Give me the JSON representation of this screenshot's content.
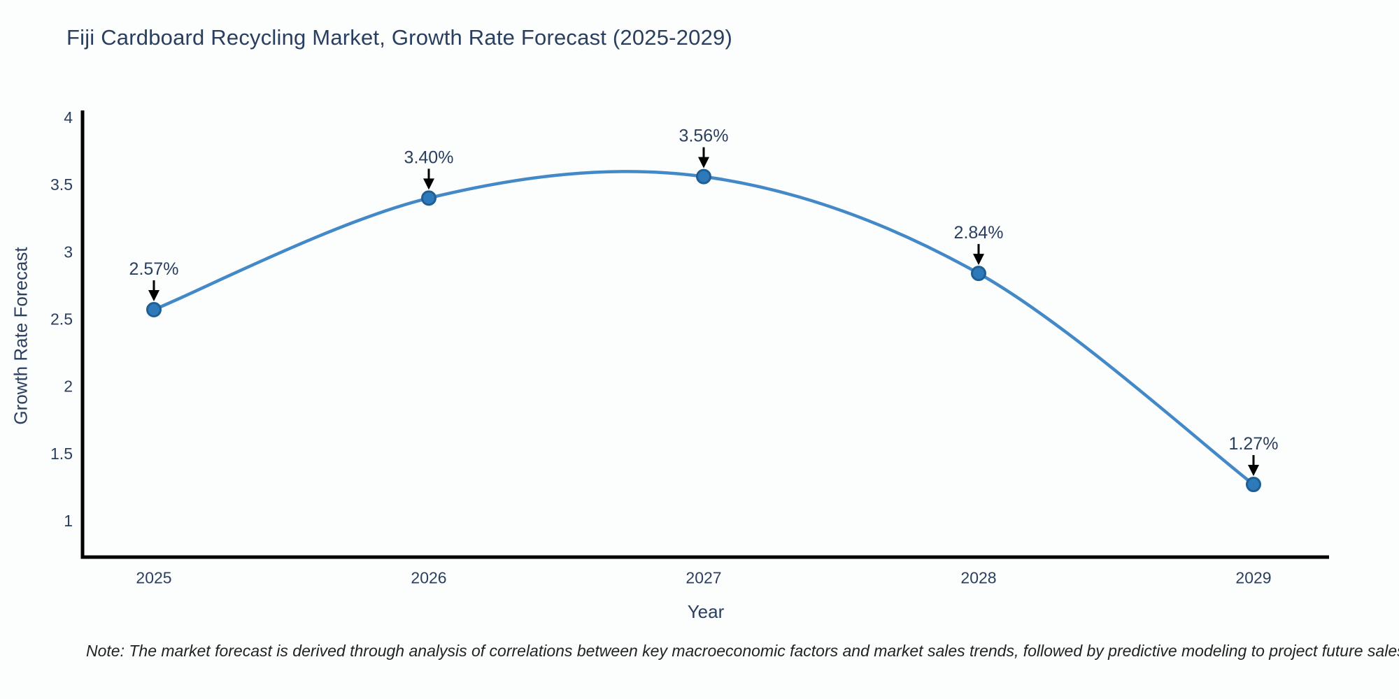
{
  "title": "Fiji Cardboard Recycling Market, Growth Rate Forecast (2025-2029)",
  "footnote": "Note: The market forecast is derived through analysis of correlations between key macroeconomic factors and market sales trends, followed by predictive modeling to project future sales",
  "colors": {
    "background": "#fcfdfd",
    "text": "#2a3f5f",
    "axis": "#000000",
    "line": "#4389c8",
    "marker_fill": "#2e79ba",
    "marker_edge": "#1f5f94",
    "arrow": "#000000"
  },
  "chart_data": {
    "type": "line",
    "title": "Fiji Cardboard Recycling Market, Growth Rate Forecast (2025-2029)",
    "xlabel": "Year",
    "ylabel": "Growth Rate Forecast",
    "x": [
      2025,
      2026,
      2027,
      2028,
      2029
    ],
    "values": [
      2.57,
      3.4,
      3.56,
      2.84,
      1.27
    ],
    "point_labels": [
      "2.57%",
      "3.40%",
      "3.56%",
      "2.84%",
      "1.27%"
    ],
    "yticks": [
      4,
      3.5,
      3,
      2.5,
      2,
      1.5,
      1
    ],
    "ylim": [
      0.72,
      4.04
    ],
    "grid": false,
    "legend_position": "none",
    "line_shape": "spline",
    "annotation_style": "value labels with downward arrows above each point"
  }
}
